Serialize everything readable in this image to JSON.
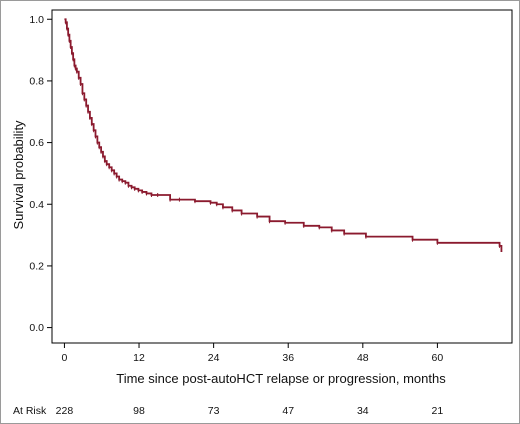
{
  "chart_data": {
    "type": "line",
    "title": "",
    "xlabel": "Time since post-autoHCT relapse or progression, months",
    "ylabel": "Survival probability",
    "xlim": [
      -2,
      72
    ],
    "ylim": [
      -0.05,
      1.03
    ],
    "x_ticks": [
      0,
      12,
      24,
      36,
      48,
      60
    ],
    "x_tick_labels": [
      "0",
      "12",
      "24",
      "36",
      "48",
      "60"
    ],
    "y_ticks": [
      0.0,
      0.2,
      0.4,
      0.6,
      0.8,
      1.0
    ],
    "y_tick_labels": [
      "0.0",
      "0.2",
      "0.4",
      "0.6",
      "0.8",
      "1.0"
    ],
    "grid": false,
    "line_color": "#8b1a2e",
    "series": [
      {
        "step": true,
        "x": [
          0,
          0.2,
          0.4,
          0.6,
          0.8,
          1.0,
          1.2,
          1.4,
          1.6,
          1.8,
          2.0,
          2.3,
          2.6,
          2.9,
          3.2,
          3.5,
          3.8,
          4.1,
          4.4,
          4.7,
          5.0,
          5.3,
          5.6,
          5.9,
          6.2,
          6.5,
          6.8,
          7.2,
          7.6,
          8.0,
          8.4,
          8.8,
          9.3,
          9.8,
          10.3,
          10.8,
          11.3,
          11.9,
          12.5,
          13.2,
          14.0,
          15.0,
          17.0,
          18.5,
          21.0,
          23.5,
          24.5,
          25.5,
          27.0,
          28.5,
          31.0,
          33.0,
          35.5,
          38.5,
          41.0,
          43.0,
          45.0,
          48.5,
          56.0,
          60.0,
          70.0,
          70.3
        ],
        "y": [
          1.0,
          0.99,
          0.97,
          0.95,
          0.93,
          0.91,
          0.89,
          0.87,
          0.85,
          0.84,
          0.83,
          0.81,
          0.79,
          0.76,
          0.74,
          0.72,
          0.7,
          0.68,
          0.66,
          0.64,
          0.62,
          0.6,
          0.585,
          0.57,
          0.555,
          0.54,
          0.53,
          0.52,
          0.51,
          0.5,
          0.49,
          0.48,
          0.475,
          0.47,
          0.46,
          0.455,
          0.45,
          0.445,
          0.44,
          0.435,
          0.43,
          0.43,
          0.415,
          0.415,
          0.41,
          0.405,
          0.4,
          0.39,
          0.38,
          0.37,
          0.36,
          0.345,
          0.34,
          0.33,
          0.325,
          0.315,
          0.305,
          0.295,
          0.285,
          0.275,
          0.265,
          0.245
        ]
      }
    ],
    "at_risk": {
      "label": "At Risk",
      "times": [
        0,
        12,
        24,
        36,
        48,
        60
      ],
      "counts": [
        "228",
        "98",
        "73",
        "47",
        "34",
        "21"
      ]
    }
  }
}
